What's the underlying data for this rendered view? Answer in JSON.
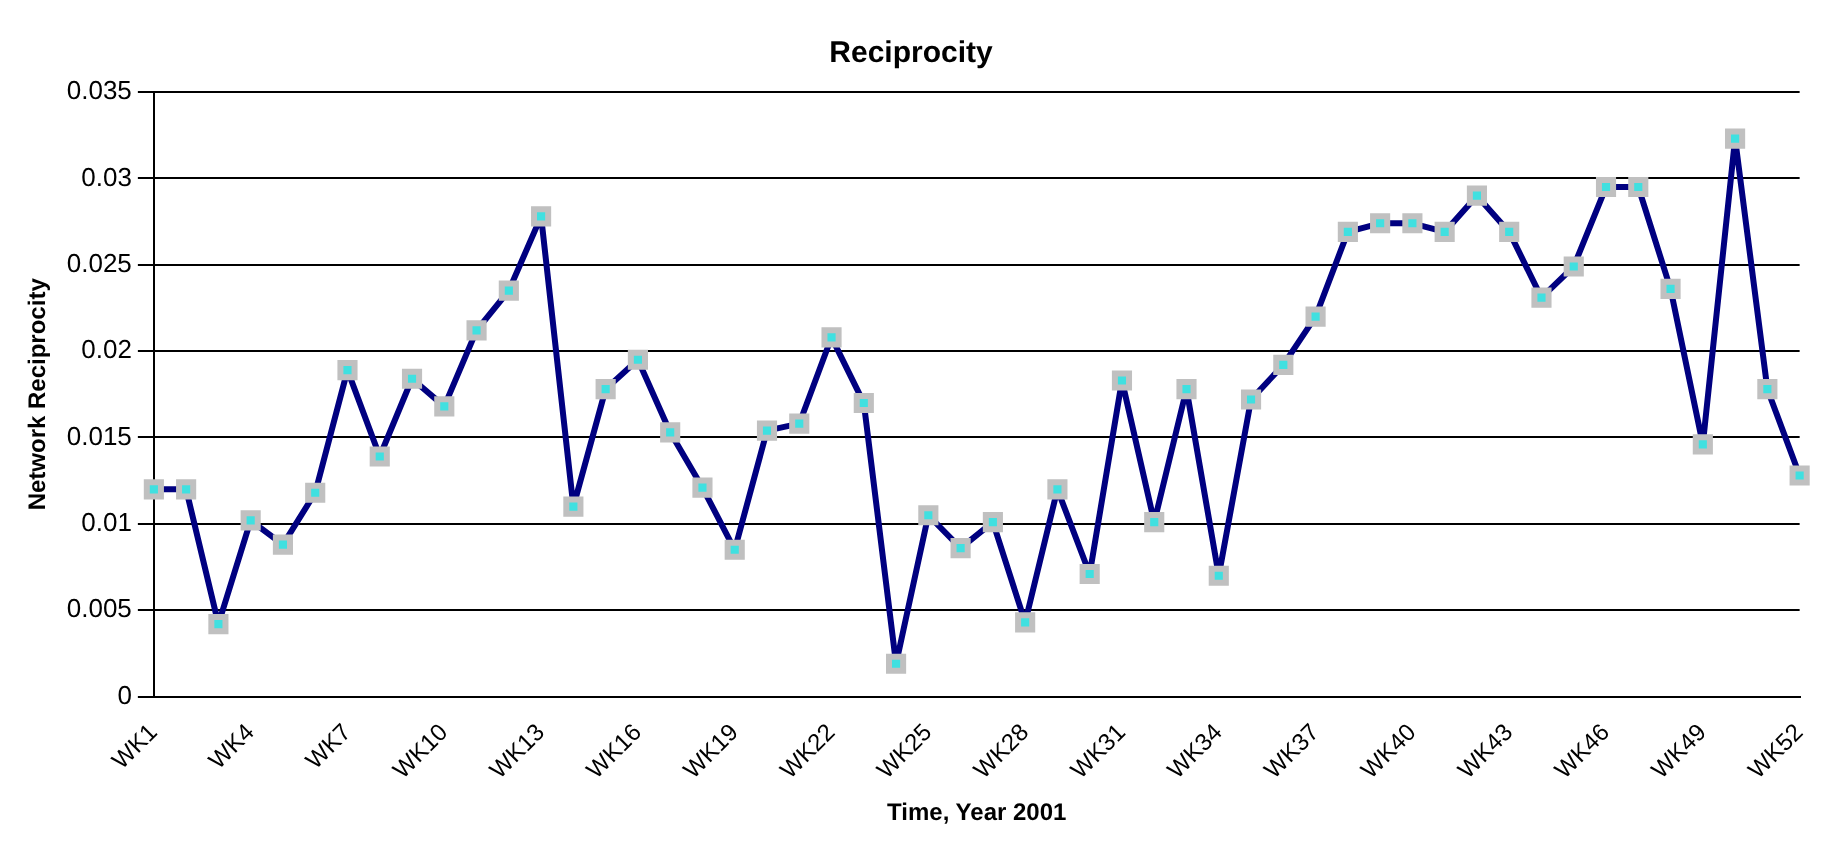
{
  "chart_data": {
    "type": "line",
    "title": "Reciprocity",
    "xlabel": "Time, Year 2001",
    "ylabel": "Network Reciprocity",
    "categories": [
      "WK1",
      null,
      null,
      "WK4",
      null,
      null,
      "WK7",
      null,
      null,
      "WK10",
      null,
      null,
      "WK13",
      null,
      null,
      "WK16",
      null,
      null,
      "WK19",
      null,
      null,
      "WK22",
      null,
      null,
      "WK25",
      null,
      null,
      "WK28",
      null,
      null,
      "WK31",
      null,
      null,
      "WK34",
      null,
      null,
      "WK37",
      null,
      null,
      "WK40",
      null,
      null,
      "WK43",
      null,
      null,
      "WK46",
      null,
      null,
      "WK49",
      null,
      null,
      "WK52"
    ],
    "series": [
      {
        "color": "#000080",
        "values": [
          0.012,
          0.012,
          0.0042,
          0.0102,
          0.0088,
          0.0118,
          0.0189,
          0.0139,
          0.0184,
          0.0168,
          0.0212,
          0.0235,
          0.0278,
          0.011,
          0.0178,
          0.0195,
          0.0153,
          0.0121,
          0.0085,
          0.0154,
          0.0158,
          0.0208,
          0.017,
          0.0019,
          0.0105,
          0.0086,
          0.0101,
          0.0043,
          0.012,
          0.0071,
          0.0183,
          0.0101,
          0.0178,
          0.007,
          0.0172,
          0.0192,
          0.022,
          0.0269,
          0.0274,
          0.0274,
          0.0269,
          0.029,
          0.0269,
          0.0231,
          0.0249,
          0.0295,
          0.0295,
          0.0236,
          0.0146,
          0.0323,
          0.0178,
          0.0128
        ]
      }
    ],
    "ylim": [
      0,
      0.035
    ],
    "yticks": [
      0,
      0.005,
      0.01,
      0.015,
      0.02,
      0.025,
      0.03,
      0.035
    ],
    "grid": "y",
    "marker": "square",
    "line_style": "solid",
    "legend": false
  }
}
